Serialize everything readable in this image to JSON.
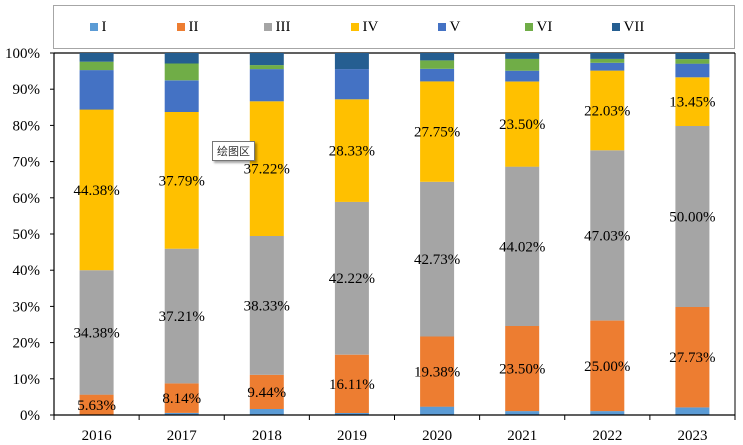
{
  "tooltip": "绘图区",
  "chart_data": {
    "type": "bar",
    "stacked": "percent",
    "title": "",
    "xlabel": "",
    "ylabel": "",
    "ylim": [
      0,
      100
    ],
    "yticks": [
      "0%",
      "10%",
      "20%",
      "30%",
      "40%",
      "50%",
      "60%",
      "70%",
      "80%",
      "90%",
      "100%"
    ],
    "legend_position": "top",
    "grid": false,
    "categories": [
      "2016",
      "2017",
      "2018",
      "2019",
      "2020",
      "2021",
      "2022",
      "2023"
    ],
    "series": [
      {
        "name": "I",
        "color": "#5b9bd5",
        "values": [
          0.0,
          0.58,
          1.67,
          0.56,
          2.31,
          1.09,
          1.08,
          2.1
        ],
        "labels": [
          null,
          null,
          null,
          null,
          null,
          null,
          null,
          null
        ]
      },
      {
        "name": "II",
        "color": "#ed7d31",
        "values": [
          5.63,
          8.14,
          9.44,
          16.11,
          19.38,
          23.5,
          25.0,
          27.73
        ],
        "labels": [
          "5.63%",
          "8.14%",
          "9.44%",
          "16.11%",
          "19.38%",
          "23.50%",
          "25.00%",
          "27.73%"
        ]
      },
      {
        "name": "III",
        "color": "#a5a5a5",
        "values": [
          34.38,
          37.21,
          38.33,
          42.22,
          42.73,
          44.02,
          47.03,
          50.0
        ],
        "labels": [
          "34.38%",
          "37.21%",
          "38.33%",
          "42.22%",
          "42.73%",
          "44.02%",
          "47.03%",
          "50.00%"
        ]
      },
      {
        "name": "IV",
        "color": "#ffc000",
        "values": [
          44.38,
          37.79,
          37.22,
          28.33,
          27.75,
          23.5,
          22.03,
          13.45
        ],
        "labels": [
          "44.38%",
          "37.79%",
          "37.22%",
          "28.33%",
          "27.75%",
          "23.50%",
          "22.03%",
          "13.45%"
        ]
      },
      {
        "name": "V",
        "color": "#4472c4",
        "values": [
          10.9,
          8.72,
          8.89,
          8.33,
          3.47,
          2.99,
          2.16,
          3.78
        ],
        "labels": [
          null,
          null,
          null,
          null,
          null,
          null,
          null,
          null
        ]
      },
      {
        "name": "VI",
        "color": "#70ad47",
        "values": [
          2.32,
          4.65,
          1.11,
          0.0,
          2.31,
          3.26,
          1.08,
          1.26
        ],
        "labels": [
          null,
          null,
          null,
          null,
          null,
          null,
          null,
          null
        ]
      },
      {
        "name": "VII",
        "color": "#255e91",
        "values": [
          2.39,
          2.91,
          3.34,
          4.45,
          2.05,
          1.64,
          1.62,
          1.68
        ],
        "labels": [
          null,
          null,
          null,
          null,
          null,
          null,
          null,
          null
        ]
      }
    ]
  }
}
